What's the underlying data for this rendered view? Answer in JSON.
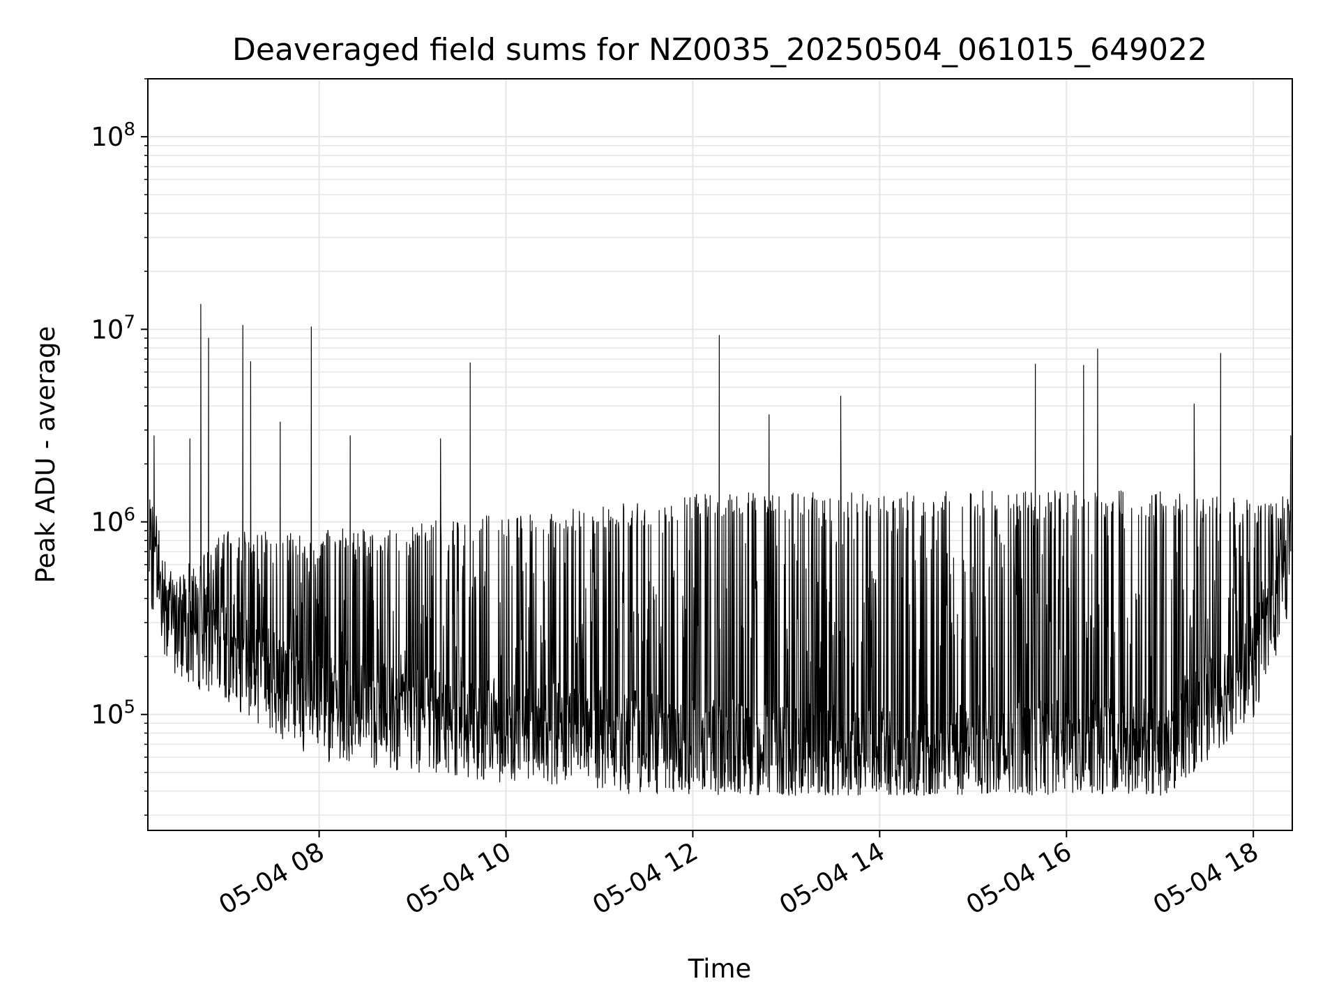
{
  "chart_data": {
    "type": "line",
    "title": "Deaveraged field sums for NZ0035_20250504_061015_649022",
    "xlabel": "Time",
    "ylabel": "Peak ADU - average",
    "yscale": "log",
    "grid": true,
    "line_color": "#000000",
    "grid_color": "#e6e6e6",
    "xlim": [
      "2025-05-04 06:10",
      "2025-05-04 18:25"
    ],
    "ylim": [
      25000,
      200000000
    ],
    "x_ticks": [
      {
        "value": "2025-05-04 08:00",
        "label": "05-04 08"
      },
      {
        "value": "2025-05-04 10:00",
        "label": "05-04 10"
      },
      {
        "value": "2025-05-04 12:00",
        "label": "05-04 12"
      },
      {
        "value": "2025-05-04 14:00",
        "label": "05-04 14"
      },
      {
        "value": "2025-05-04 16:00",
        "label": "05-04 16"
      },
      {
        "value": "2025-05-04 18:00",
        "label": "05-04 18"
      }
    ],
    "y_ticks": [
      {
        "value": 100000,
        "base": "10",
        "exp": "5"
      },
      {
        "value": 1000000,
        "base": "10",
        "exp": "6"
      },
      {
        "value": 10000000,
        "base": "10",
        "exp": "7"
      },
      {
        "value": 100000000,
        "base": "10",
        "exp": "8"
      }
    ],
    "series_profile": {
      "segments": [
        {
          "t": "2025-05-04 06:11",
          "low": 600000,
          "high": 1800000
        },
        {
          "t": "2025-05-04 06:25",
          "low": 250000,
          "high": 500000
        },
        {
          "t": "2025-05-04 07:00",
          "low": 180000,
          "high": 900000
        },
        {
          "t": "2025-05-04 08:00",
          "low": 90000,
          "high": 900000
        },
        {
          "t": "2025-05-04 10:00",
          "low": 70000,
          "high": 1100000
        },
        {
          "t": "2025-05-04 11:30",
          "low": 60000,
          "high": 1300000
        },
        {
          "t": "2025-05-04 12:00",
          "low": 55000,
          "high": 1400000
        },
        {
          "t": "2025-05-04 14:00",
          "low": 50000,
          "high": 1450000
        },
        {
          "t": "2025-05-04 17:00",
          "low": 55000,
          "high": 1450000
        },
        {
          "t": "2025-05-04 18:00",
          "low": 150000,
          "high": 1300000
        },
        {
          "t": "2025-05-04 18:24",
          "low": 500000,
          "high": 1400000
        }
      ],
      "spikes": [
        {
          "t": "2025-05-04 06:14",
          "value": 2800000
        },
        {
          "t": "2025-05-04 06:37",
          "value": 2700000
        },
        {
          "t": "2025-05-04 06:44",
          "value": 13500000
        },
        {
          "t": "2025-05-04 06:49",
          "value": 9000000
        },
        {
          "t": "2025-05-04 07:11",
          "value": 10500000
        },
        {
          "t": "2025-05-04 07:16",
          "value": 6800000
        },
        {
          "t": "2025-05-04 07:35",
          "value": 3300000
        },
        {
          "t": "2025-05-04 07:55",
          "value": 10300000
        },
        {
          "t": "2025-05-04 08:20",
          "value": 2800000
        },
        {
          "t": "2025-05-04 09:18",
          "value": 2700000
        },
        {
          "t": "2025-05-04 09:37",
          "value": 6700000
        },
        {
          "t": "2025-05-04 12:17",
          "value": 9300000
        },
        {
          "t": "2025-05-04 12:49",
          "value": 3600000
        },
        {
          "t": "2025-05-04 13:35",
          "value": 4500000
        },
        {
          "t": "2025-05-04 15:40",
          "value": 6600000
        },
        {
          "t": "2025-05-04 16:11",
          "value": 6500000
        },
        {
          "t": "2025-05-04 16:20",
          "value": 7900000
        },
        {
          "t": "2025-05-04 17:22",
          "value": 4100000
        },
        {
          "t": "2025-05-04 17:39",
          "value": 7500000
        },
        {
          "t": "2025-05-04 18:24",
          "value": 2800000
        }
      ],
      "minimum_level": 38000
    }
  }
}
